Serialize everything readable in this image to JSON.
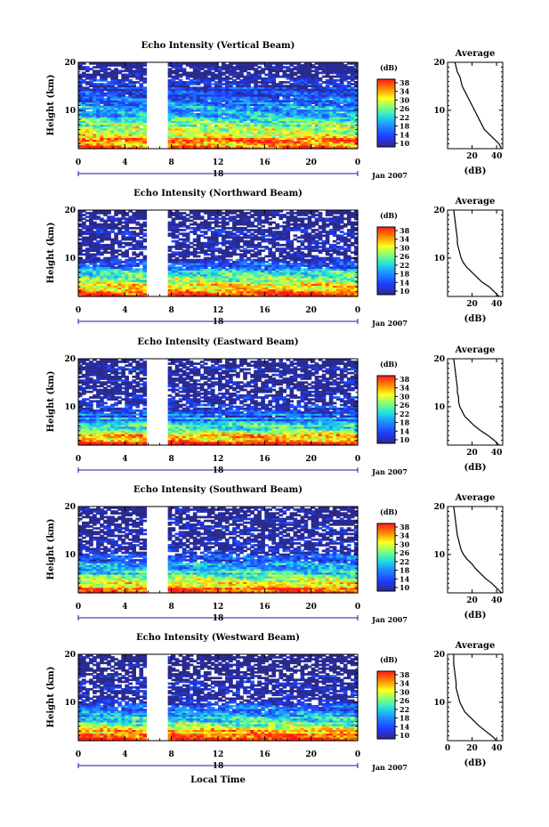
{
  "figure": {
    "xlabel_bottom": "Local Time",
    "date_label": "Jan 2007",
    "day_label": "18"
  },
  "chart_data": [
    {
      "type": "heatmap",
      "beam": "vertical",
      "title": "Echo Intensity (Vertical Beam)",
      "ylabel": "Height (km)",
      "xlim": [
        0,
        24
      ],
      "ylim": [
        2,
        20
      ],
      "xticks": [
        "0",
        "4",
        "8",
        "12",
        "16",
        "20",
        "0"
      ],
      "yticks": [
        "20",
        "10"
      ],
      "colorbar": {
        "unit": "(dB)",
        "ticks": [
          "38",
          "34",
          "30",
          "26",
          "22",
          "18",
          "14",
          "10"
        ],
        "range": [
          10,
          38
        ]
      },
      "data_gap_hours": [
        5.8,
        7.6
      ],
      "profile_dB_by_height": [
        [
          2,
          36
        ],
        [
          4,
          33
        ],
        [
          6,
          27
        ],
        [
          8,
          25
        ],
        [
          10,
          19
        ],
        [
          12,
          18
        ],
        [
          14,
          13
        ],
        [
          16,
          11
        ],
        [
          18,
          8
        ],
        [
          20,
          6
        ]
      ],
      "average": {
        "title": "Average",
        "xlabel": "(dB)",
        "xticks": [
          "20",
          "40"
        ],
        "xlim": [
          0,
          45
        ],
        "x": [
          44,
          42,
          38,
          34,
          30,
          26,
          24,
          22,
          20,
          18,
          16,
          14,
          12,
          10,
          8,
          6
        ],
        "y": [
          2,
          3,
          4,
          5,
          6,
          8,
          9,
          10,
          11,
          12,
          13,
          14,
          15,
          17,
          18,
          20
        ]
      }
    },
    {
      "type": "heatmap",
      "beam": "northward",
      "title": "Echo Intensity (Northward Beam)",
      "ylabel": "Height (km)",
      "xlim": [
        0,
        24
      ],
      "ylim": [
        2,
        20
      ],
      "xticks": [
        "0",
        "4",
        "8",
        "12",
        "16",
        "20",
        "0"
      ],
      "yticks": [
        "20",
        "10"
      ],
      "colorbar": {
        "unit": "(dB)",
        "ticks": [
          "38",
          "34",
          "30",
          "26",
          "22",
          "18",
          "14",
          "10"
        ],
        "range": [
          10,
          38
        ]
      },
      "data_gap_hours": [
        5.8,
        7.6
      ],
      "profile_dB_by_height": [
        [
          2,
          37
        ],
        [
          4,
          32
        ],
        [
          6,
          24
        ],
        [
          8,
          18
        ],
        [
          10,
          12
        ],
        [
          12,
          10
        ],
        [
          14,
          9
        ],
        [
          16,
          8
        ],
        [
          18,
          8
        ],
        [
          20,
          8
        ]
      ],
      "average": {
        "title": "Average",
        "xlabel": "(dB)",
        "xticks": [
          "20",
          "40"
        ],
        "xlim": [
          0,
          45
        ],
        "x": [
          42,
          38,
          34,
          28,
          24,
          20,
          16,
          13,
          11,
          10,
          9,
          8,
          8,
          7,
          6,
          5
        ],
        "y": [
          2,
          3,
          4,
          5,
          6,
          7,
          8,
          9,
          10,
          11,
          12,
          13,
          14,
          16,
          18,
          20
        ]
      }
    },
    {
      "type": "heatmap",
      "beam": "eastward",
      "title": "Echo Intensity (Eastward Beam)",
      "ylabel": "Height (km)",
      "xlim": [
        0,
        24
      ],
      "ylim": [
        2,
        20
      ],
      "xticks": [
        "0",
        "4",
        "8",
        "12",
        "16",
        "20",
        "0"
      ],
      "yticks": [
        "20",
        "10"
      ],
      "colorbar": {
        "unit": "(dB)",
        "ticks": [
          "38",
          "34",
          "30",
          "26",
          "22",
          "18",
          "14",
          "10"
        ],
        "range": [
          10,
          38
        ]
      },
      "data_gap_hours": [
        5.8,
        7.6
      ],
      "profile_dB_by_height": [
        [
          2,
          37
        ],
        [
          4,
          31
        ],
        [
          6,
          23
        ],
        [
          8,
          17
        ],
        [
          10,
          12
        ],
        [
          12,
          10
        ],
        [
          14,
          9
        ],
        [
          16,
          8
        ],
        [
          18,
          8
        ],
        [
          20,
          8
        ]
      ],
      "average": {
        "title": "Average",
        "xlabel": "(dB)",
        "xticks": [
          "20",
          "40"
        ],
        "xlim": [
          0,
          45
        ],
        "x": [
          42,
          38,
          33,
          27,
          22,
          18,
          14,
          12,
          10,
          9,
          9,
          8,
          8,
          7,
          6,
          5
        ],
        "y": [
          2,
          3,
          4,
          5,
          6,
          7,
          8,
          9,
          10,
          11,
          12,
          13,
          14,
          16,
          18,
          20
        ]
      }
    },
    {
      "type": "heatmap",
      "beam": "southward",
      "title": "Echo Intensity (Southward Beam)",
      "ylabel": "Height (km)",
      "xlim": [
        0,
        24
      ],
      "ylim": [
        2,
        20
      ],
      "xticks": [
        "0",
        "4",
        "8",
        "12",
        "16",
        "20",
        "0"
      ],
      "yticks": [
        "20",
        "10"
      ],
      "colorbar": {
        "unit": "(dB)",
        "ticks": [
          "38",
          "34",
          "30",
          "26",
          "22",
          "18",
          "14",
          "10"
        ],
        "range": [
          10,
          38
        ]
      },
      "data_gap_hours": [
        5.8,
        7.6
      ],
      "profile_dB_by_height": [
        [
          2,
          37
        ],
        [
          4,
          32
        ],
        [
          6,
          25
        ],
        [
          8,
          19
        ],
        [
          10,
          13
        ],
        [
          12,
          10
        ],
        [
          14,
          9
        ],
        [
          16,
          8
        ],
        [
          18,
          8
        ],
        [
          20,
          8
        ]
      ],
      "average": {
        "title": "Average",
        "xlabel": "(dB)",
        "xticks": [
          "20",
          "40"
        ],
        "xlim": [
          0,
          45
        ],
        "x": [
          44,
          40,
          36,
          31,
          27,
          23,
          20,
          16,
          13,
          11,
          10,
          9,
          8,
          7,
          6,
          5
        ],
        "y": [
          2,
          3,
          4,
          5,
          6,
          7,
          8,
          9,
          10,
          11,
          12,
          13,
          14,
          16,
          18,
          20
        ]
      }
    },
    {
      "type": "heatmap",
      "beam": "westward",
      "title": "Echo Intensity (Westward Beam)",
      "ylabel": "Height (km)",
      "xlim": [
        0,
        24
      ],
      "ylim": [
        2,
        20
      ],
      "xticks": [
        "0",
        "4",
        "8",
        "12",
        "16",
        "20",
        "0"
      ],
      "yticks": [
        "20",
        "10"
      ],
      "colorbar": {
        "unit": "(dB)",
        "ticks": [
          "38",
          "34",
          "30",
          "26",
          "22",
          "18",
          "14",
          "10"
        ],
        "range": [
          10,
          38
        ]
      },
      "data_gap_hours": [
        5.8,
        7.6
      ],
      "profile_dB_by_height": [
        [
          2,
          37
        ],
        [
          4,
          32
        ],
        [
          6,
          24
        ],
        [
          8,
          18
        ],
        [
          10,
          12
        ],
        [
          12,
          10
        ],
        [
          14,
          9
        ],
        [
          16,
          8
        ],
        [
          18,
          8
        ],
        [
          20,
          8
        ]
      ],
      "average": {
        "title": "Average",
        "xlabel": "(dB)",
        "xticks": [
          "0",
          "20",
          "40"
        ],
        "xlim": [
          0,
          45
        ],
        "x": [
          40,
          36,
          31,
          26,
          22,
          18,
          14,
          12,
          10,
          9,
          8,
          7,
          7,
          6,
          5,
          5
        ],
        "y": [
          2,
          3,
          4,
          5,
          6,
          7,
          8,
          9,
          10,
          11,
          12,
          13,
          14,
          16,
          18,
          20
        ]
      }
    }
  ]
}
